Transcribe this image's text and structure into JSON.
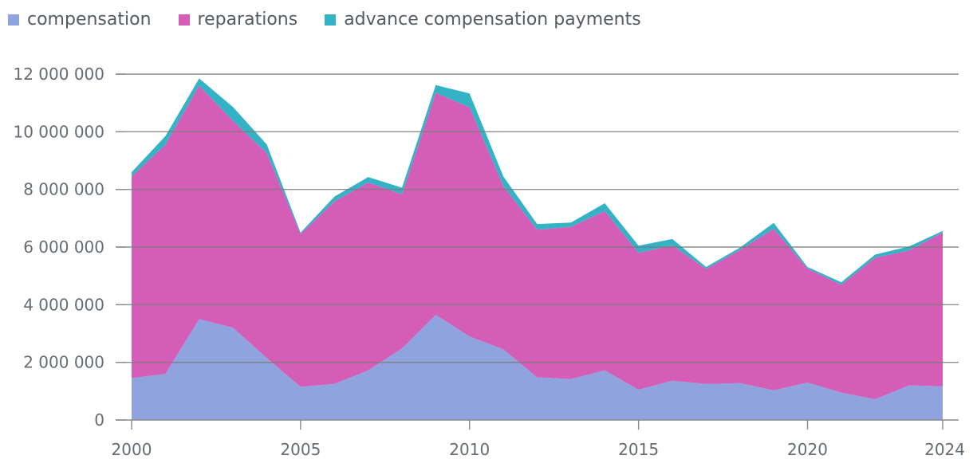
{
  "chart_data": {
    "type": "area",
    "stacked": true,
    "title": "",
    "xlabel": "",
    "ylabel": "",
    "x": [
      2000,
      2001,
      2002,
      2003,
      2004,
      2005,
      2006,
      2007,
      2008,
      2009,
      2010,
      2011,
      2012,
      2013,
      2014,
      2015,
      2016,
      2017,
      2018,
      2019,
      2020,
      2021,
      2022,
      2023,
      2024
    ],
    "x_ticks": [
      2000,
      2005,
      2010,
      2015,
      2020,
      2024
    ],
    "x_tick_labels": [
      "2000",
      "2005",
      "2010",
      "2015",
      "2020",
      "2024"
    ],
    "xlim": [
      2000,
      2024
    ],
    "ylim": [
      0,
      12000000
    ],
    "y_ticks": [
      0,
      2000000,
      4000000,
      6000000,
      8000000,
      10000000,
      12000000
    ],
    "y_tick_labels": [
      "0",
      "2 000 000",
      "4 000 000",
      "6 000 000",
      "8 000 000",
      "10 000 000",
      "12 000 000"
    ],
    "grid": true,
    "legend_position": "top-left",
    "series": [
      {
        "name": "compensation",
        "color": "#8fa3df",
        "values": [
          1450000,
          1600000,
          3500000,
          3200000,
          2150000,
          1150000,
          1250000,
          1720000,
          2480000,
          3650000,
          2900000,
          2450000,
          1480000,
          1420000,
          1720000,
          1050000,
          1360000,
          1250000,
          1280000,
          1030000,
          1300000,
          950000,
          720000,
          1200000,
          1170000
        ]
      },
      {
        "name": "reparations",
        "color": "#d45db7",
        "values": [
          7000000,
          7950000,
          8100000,
          7180000,
          7110000,
          5300000,
          6330000,
          6520000,
          5350000,
          7700000,
          7950000,
          5660000,
          5120000,
          5280000,
          5530000,
          4750000,
          4700000,
          3990000,
          4620000,
          5600000,
          3950000,
          3740000,
          4910000,
          4680000,
          5330000
        ]
      },
      {
        "name": "advance compensation payments",
        "color": "#35b3c6",
        "values": [
          150000,
          300000,
          250000,
          480000,
          300000,
          50000,
          170000,
          190000,
          230000,
          270000,
          480000,
          340000,
          200000,
          150000,
          270000,
          250000,
          220000,
          70000,
          80000,
          210000,
          60000,
          90000,
          110000,
          140000,
          60000
        ]
      }
    ]
  }
}
